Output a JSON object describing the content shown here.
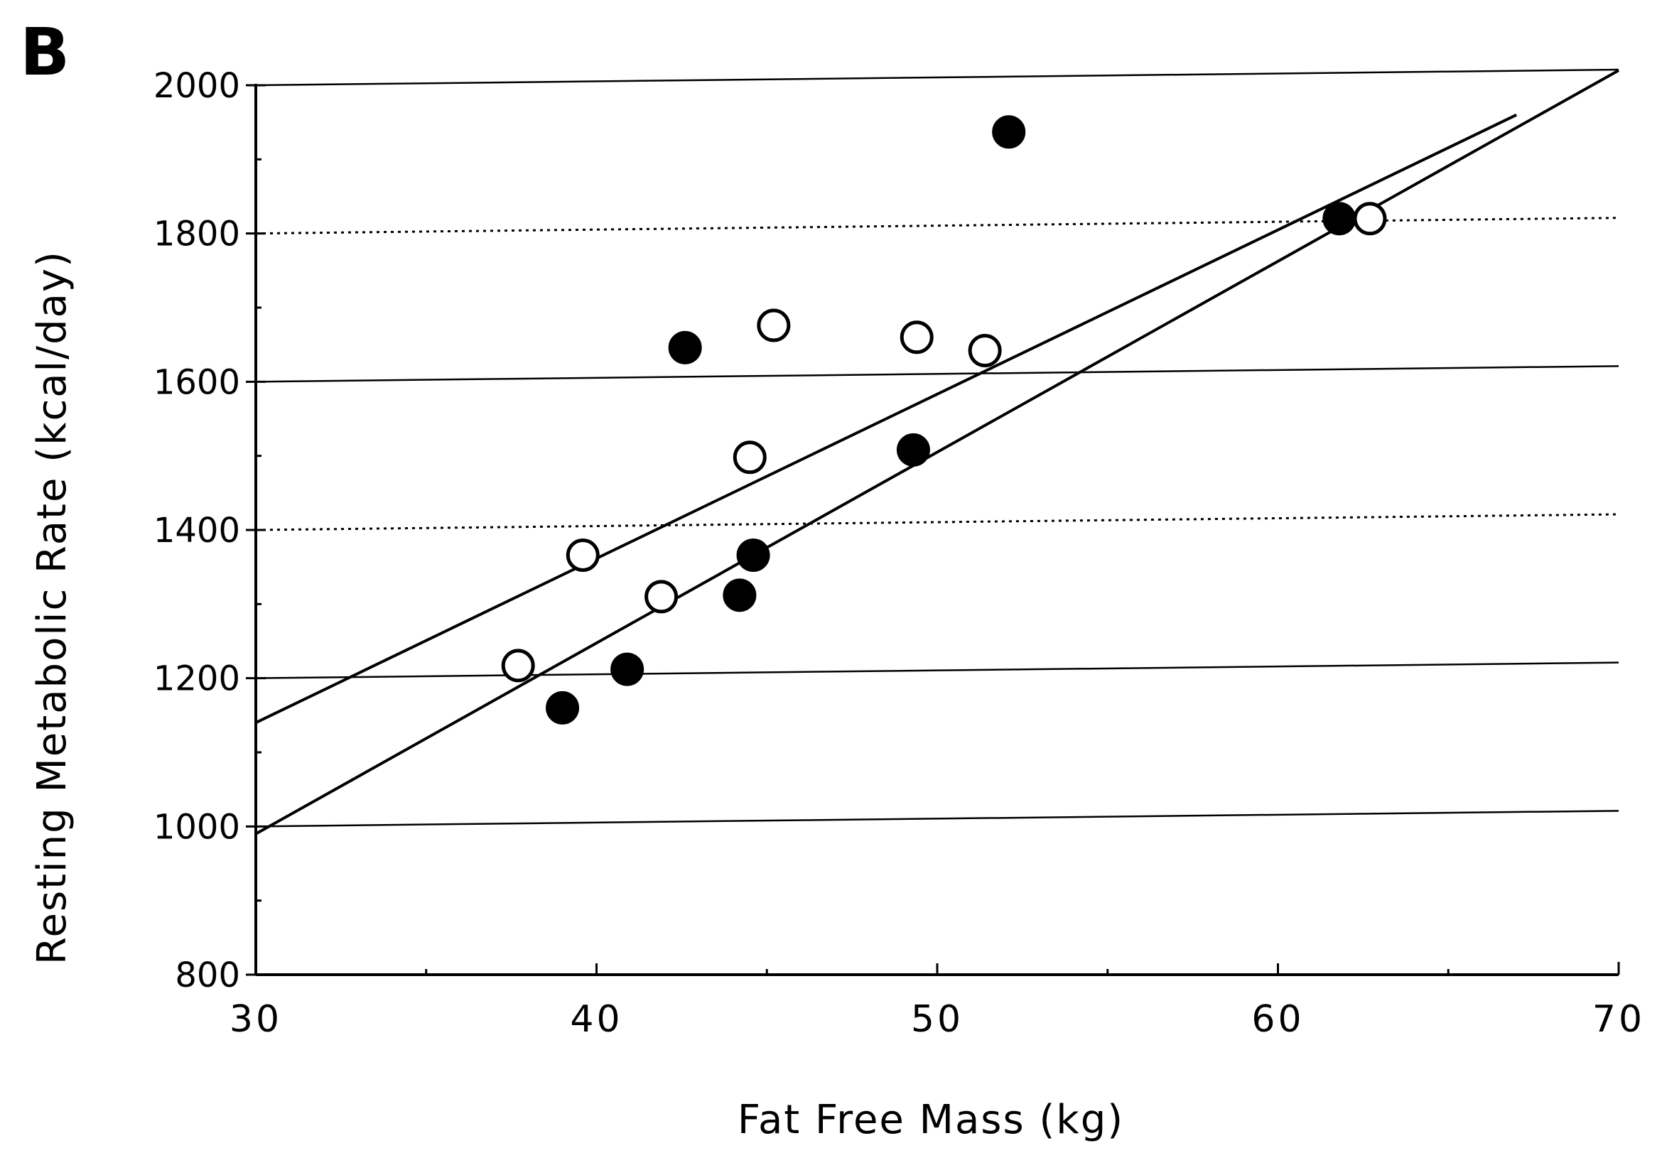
{
  "chart_data": {
    "type": "scatter",
    "panel_label": "B",
    "xlabel": "Fat Free Mass (kg)",
    "ylabel": "Resting Metabolic Rate (kcal/day)",
    "xlim": [
      30,
      70
    ],
    "ylim": [
      800,
      2000
    ],
    "x_ticks": [
      30,
      40,
      50,
      60,
      70
    ],
    "y_ticks": [
      800,
      1000,
      1200,
      1400,
      1600,
      1800,
      2000
    ],
    "grid": "horizontal",
    "series": [
      {
        "marker": "filled-circle",
        "color": "#000000",
        "points": [
          {
            "x": 39.0,
            "y": 1160
          },
          {
            "x": 40.9,
            "y": 1212
          },
          {
            "x": 42.6,
            "y": 1646
          },
          {
            "x": 44.2,
            "y": 1312
          },
          {
            "x": 44.6,
            "y": 1366
          },
          {
            "x": 49.3,
            "y": 1508
          },
          {
            "x": 52.1,
            "y": 1937
          },
          {
            "x": 61.8,
            "y": 1820
          }
        ],
        "fit": {
          "x": [
            30,
            70
          ],
          "y": [
            990,
            2020
          ]
        }
      },
      {
        "marker": "open-circle",
        "color": "#000000",
        "points": [
          {
            "x": 37.7,
            "y": 1217
          },
          {
            "x": 39.6,
            "y": 1366
          },
          {
            "x": 41.9,
            "y": 1310
          },
          {
            "x": 44.5,
            "y": 1498
          },
          {
            "x": 45.2,
            "y": 1676
          },
          {
            "x": 49.4,
            "y": 1660
          },
          {
            "x": 51.4,
            "y": 1642
          },
          {
            "x": 62.7,
            "y": 1820
          }
        ],
        "fit": {
          "x": [
            30,
            67
          ],
          "y": [
            1140,
            1960
          ]
        }
      }
    ]
  }
}
